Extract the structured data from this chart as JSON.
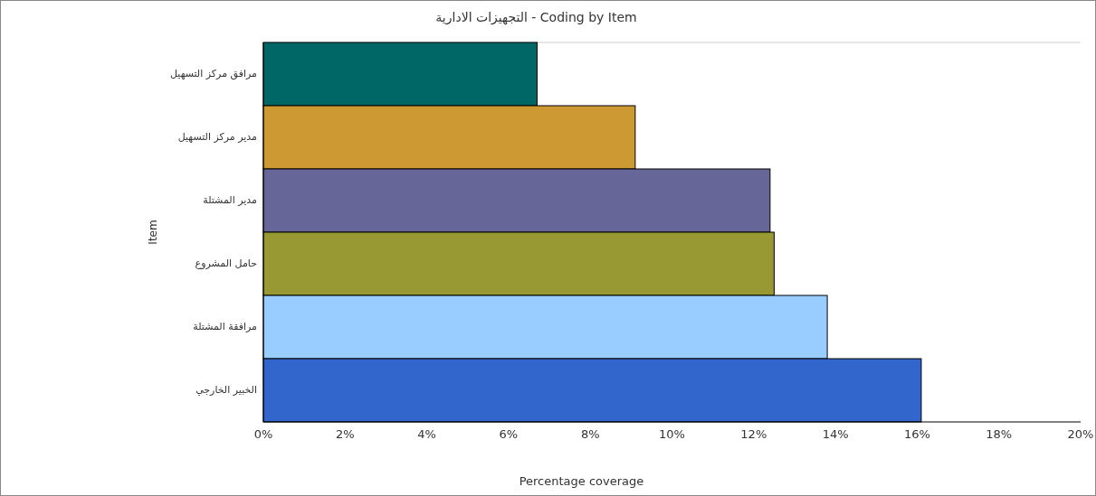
{
  "chart_data": {
    "type": "bar",
    "orientation": "horizontal",
    "title": "التجهيزات الادارية - Coding by Item",
    "xlabel": "Percentage coverage",
    "ylabel": "Item",
    "categories": [
      "مرافق مركز التسهيل",
      "مدير مركز التسهيل",
      "مدير المشتلة",
      "حامل المشروع",
      "مرافقة المشتلة",
      "الخبير الخارجي"
    ],
    "values": [
      6.7,
      9.1,
      12.4,
      12.5,
      13.8,
      16.1
    ],
    "colors": [
      "#006666",
      "#cc9933",
      "#666699",
      "#999933",
      "#99ccff",
      "#3366cc"
    ],
    "xlim": [
      0,
      20
    ],
    "xticks": [
      {
        "value": 0,
        "label": "0%"
      },
      {
        "value": 2,
        "label": "2%"
      },
      {
        "value": 4,
        "label": "4%"
      },
      {
        "value": 6,
        "label": "6%"
      },
      {
        "value": 8,
        "label": "8%"
      },
      {
        "value": 10,
        "label": "10%"
      },
      {
        "value": 12,
        "label": "12%"
      },
      {
        "value": 14,
        "label": "14%"
      },
      {
        "value": 16,
        "label": "16%"
      },
      {
        "value": 18,
        "label": "18%"
      },
      {
        "value": 20,
        "label": "20%"
      }
    ],
    "grid": false
  }
}
